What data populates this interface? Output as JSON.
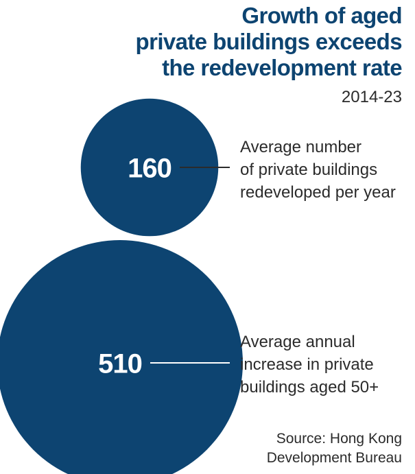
{
  "title_lines": [
    "Growth of aged",
    "private buildings exceeds",
    "the redevelopment rate"
  ],
  "subtitle": "2014-23",
  "source_lines": [
    "Source: Hong Kong",
    "Development Bureau"
  ],
  "colors": {
    "bubble": "#0d4471",
    "title": "#0d4471",
    "text": "#2b2b2b",
    "value_label": "#ffffff"
  },
  "chart_data": {
    "type": "bubble",
    "title": "Growth of aged private buildings exceeds the redevelopment rate",
    "subtitle": "2014-23",
    "items": [
      {
        "value": 160,
        "label": "160",
        "description_lines": [
          "Average number",
          "of private buildings",
          "redeveloped per year"
        ]
      },
      {
        "value": 510,
        "label": "510",
        "description_lines": [
          "Average annual",
          "increase in private",
          "buildings aged 50+"
        ]
      }
    ]
  }
}
